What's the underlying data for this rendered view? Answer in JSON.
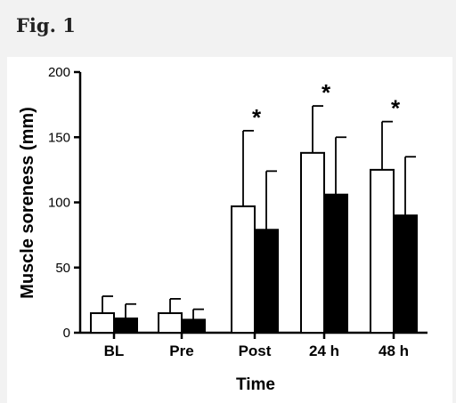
{
  "figure_label": "Fig. 1",
  "chart_data": {
    "type": "bar",
    "categories": [
      "BL",
      "Pre",
      "Post",
      "24 h",
      "48 h"
    ],
    "xlabel": "Time",
    "ylabel": "Muscle soreness (mm)",
    "ylim": [
      0,
      200
    ],
    "yticks": [
      0,
      50,
      100,
      150,
      200
    ],
    "grid": false,
    "series": [
      {
        "fill": "#ffffff",
        "stroke": "#000000",
        "values": [
          15,
          15,
          97,
          138,
          125
        ],
        "error_upper": [
          28,
          26,
          155,
          174,
          162
        ]
      },
      {
        "fill": "#000000",
        "stroke": "#000000",
        "values": [
          11,
          10,
          79,
          106,
          90
        ],
        "error_upper": [
          22,
          18,
          124,
          150,
          135
        ]
      }
    ],
    "annotations": [
      {
        "category": "Post",
        "text": "*"
      },
      {
        "category": "24 h",
        "text": "*"
      },
      {
        "category": "48 h",
        "text": "*"
      }
    ]
  }
}
